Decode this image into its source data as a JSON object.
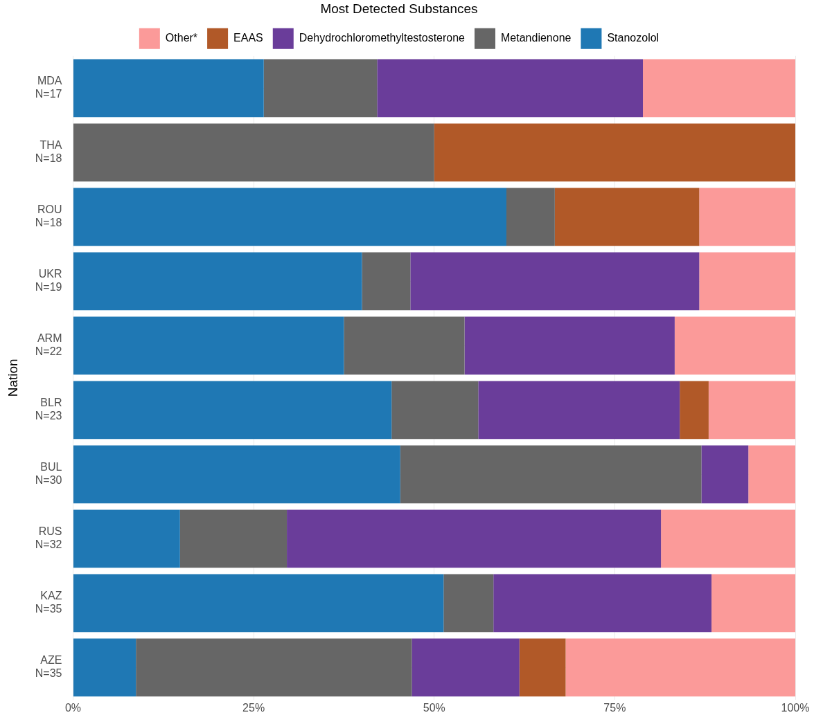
{
  "chart_data": {
    "type": "bar",
    "orientation": "horizontal",
    "stacked": true,
    "ylabel": "Nation",
    "legend_title": "Most Detected Substances",
    "legend": "top",
    "grid": true,
    "categories": [
      "MDA\nN=17",
      "THA\nN=18",
      "ROU\nN=18",
      "UKR\nN=19",
      "ARM\nN=22",
      "BLR\nN=23",
      "BUL\nN=30",
      "RUS\nN=32",
      "KAZ\nN=35",
      "AZE\nN=35"
    ],
    "xlim": [
      0,
      100
    ],
    "xticks": [
      {
        "value": 0,
        "label": "0%"
      },
      {
        "value": 25,
        "label": "25%"
      },
      {
        "value": 50,
        "label": "50%"
      },
      {
        "value": 75,
        "label": "75%"
      },
      {
        "value": 100,
        "label": "100%"
      }
    ],
    "series": [
      {
        "name": "Stanozolol",
        "color": "#1f78b4",
        "values": [
          26.4,
          0,
          60.0,
          40.0,
          37.5,
          44.1,
          45.3,
          14.8,
          51.3,
          8.7
        ]
      },
      {
        "name": "Metandienone",
        "color": "#666666",
        "values": [
          15.7,
          50,
          6.7,
          6.7,
          16.7,
          12.0,
          41.7,
          14.8,
          6.9,
          38.2
        ]
      },
      {
        "name": "Dehydrochloromethyltestosterone",
        "color": "#6a3d9a",
        "values": [
          36.8,
          0,
          0,
          40.0,
          29.1,
          27.9,
          6.5,
          51.8,
          30.2,
          14.9
        ]
      },
      {
        "name": "EAAS",
        "color": "#b15928",
        "values": [
          0,
          50,
          20.0,
          0,
          0,
          4.0,
          0,
          0,
          0,
          6.4
        ]
      },
      {
        "name": "Other*",
        "color": "#fb9a99",
        "values": [
          21.1,
          0,
          13.3,
          13.3,
          16.7,
          12.0,
          6.5,
          18.6,
          11.6,
          31.8
        ]
      }
    ]
  }
}
